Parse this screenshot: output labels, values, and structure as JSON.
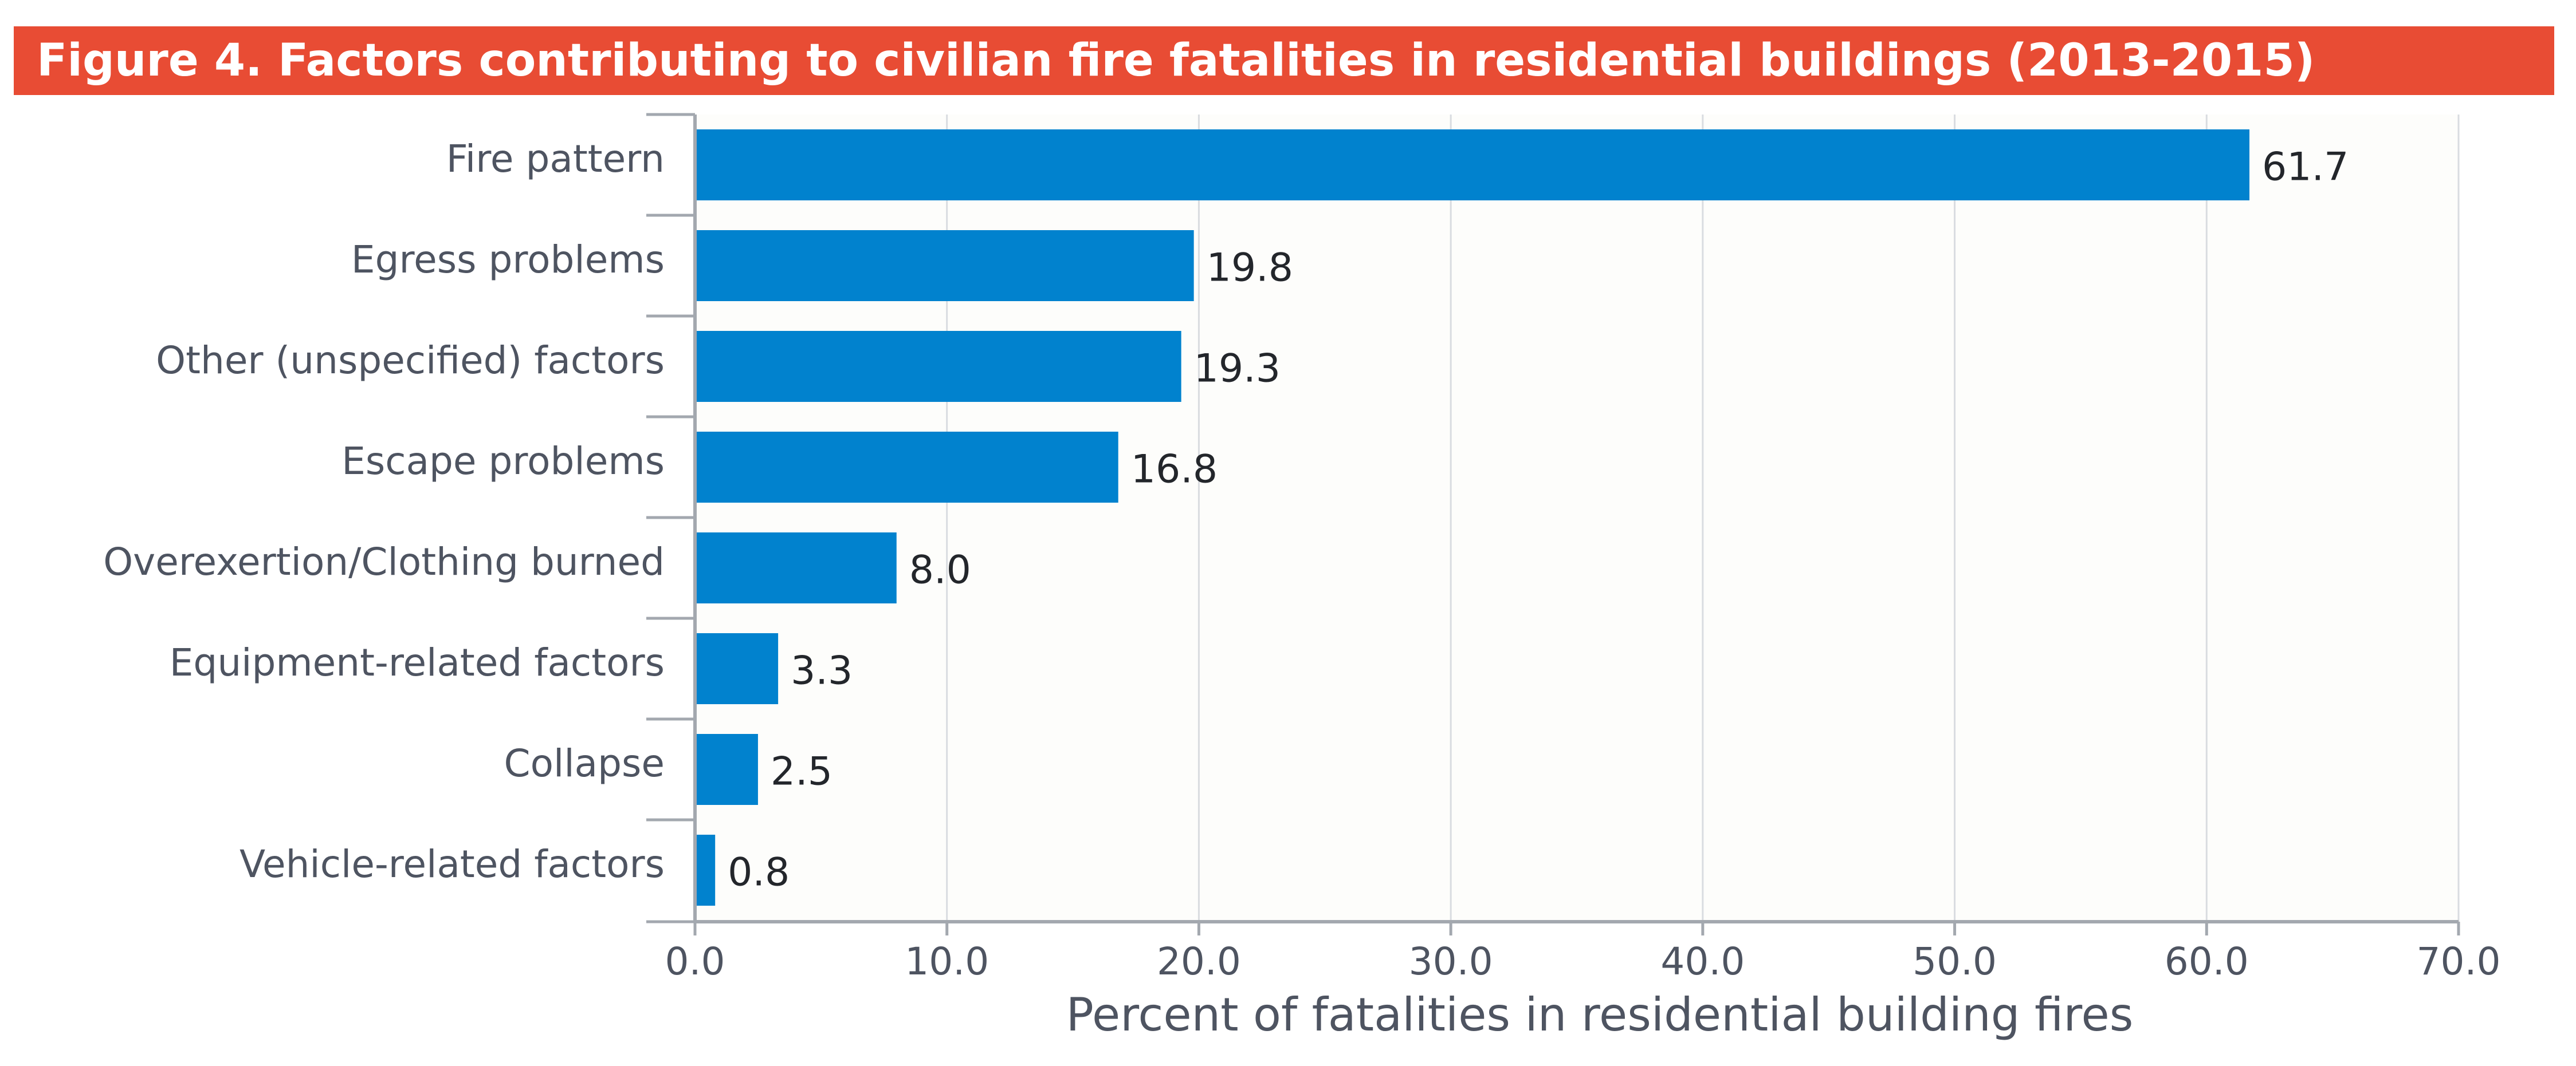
{
  "figure": {
    "title": "Figure 4. Factors contributing to civilian fire fatalities in residential buildings (2013-2015)",
    "title_bg": "#E84C34",
    "title_color": "#FFFFFF"
  },
  "chart_data": {
    "type": "bar",
    "orientation": "horizontal",
    "title": "Figure 4. Factors contributing to civilian fire fatalities in residential buildings (2013-2015)",
    "categories": [
      "Fire pattern",
      "Egress problems",
      "Other (unspecified) factors",
      "Escape problems",
      "Overexertion/Clothing burned",
      "Equipment-related factors",
      "Collapse",
      "Vehicle-related factors"
    ],
    "values": [
      61.7,
      19.8,
      19.3,
      16.8,
      8.0,
      3.3,
      2.5,
      0.8
    ],
    "value_labels": [
      "61.7",
      "19.8",
      "19.3",
      "16.8",
      "8.0",
      "3.3",
      "2.5",
      "0.8"
    ],
    "xlabel": "Percent of fatalities in residential building fires",
    "ylabel": "",
    "xlim": [
      0,
      70
    ],
    "xticks": [
      "0.0",
      "10.0",
      "20.0",
      "30.0",
      "40.0",
      "50.0",
      "60.0",
      "70.0"
    ],
    "xtick_values": [
      0,
      10,
      20,
      30,
      40,
      50,
      60,
      70
    ],
    "grid": true,
    "legend": "none",
    "colors": {
      "bar": "#0182CE",
      "grid": "#D9DCE0",
      "axis": "#A3A8AF",
      "category_text": "#4E5461",
      "value_text": "#23262B",
      "plot_bg": "#FDFDFB"
    }
  }
}
